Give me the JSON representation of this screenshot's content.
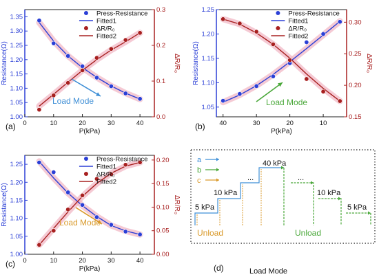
{
  "colors": {
    "blue": "#2b3fd6",
    "red": "#a82020",
    "highlight": "#f2b8c6",
    "arrow_a": "#3f8fd6",
    "arrow_b": "#4aa83a",
    "arrow_c": "#d99a2b",
    "axis": "#222222"
  },
  "chart_data": [
    {
      "type": "scatter",
      "panel_label": "(a)",
      "xlabel": "P(kPa)",
      "ylabel_left": "Resistance(Ω)",
      "ylabel_right": "ΔR/R₀",
      "xlim": [
        0,
        45
      ],
      "xticks": [
        0,
        10,
        20,
        30,
        40
      ],
      "ylim_left": [
        1.0,
        1.375
      ],
      "yticks_left": [
        1.0,
        1.05,
        1.1,
        1.15,
        1.2,
        1.25,
        1.3,
        1.35
      ],
      "ylim_right": [
        0.0,
        0.3
      ],
      "yticks_right": [
        0.0,
        0.1,
        0.2,
        0.3
      ],
      "annotation": "Load Mode",
      "annotation_arrow": "up-right",
      "legend_position": "top-right",
      "legend": [
        {
          "label": "Press-Resistance",
          "kind": "marker",
          "color": "#2b3fd6"
        },
        {
          "label": "Fitted1",
          "kind": "line",
          "color": "#2b3fd6"
        },
        {
          "label": "ΔR/R₀",
          "kind": "marker",
          "color": "#a82020"
        },
        {
          "label": "Fitted2",
          "kind": "line",
          "color": "#a82020"
        }
      ],
      "series": [
        {
          "axis": "left",
          "color": "#2b3fd6",
          "x": [
            5,
            10,
            15,
            20,
            25,
            30,
            35,
            40
          ],
          "y": [
            1.337,
            1.257,
            1.213,
            1.177,
            1.137,
            1.107,
            1.082,
            1.063
          ],
          "fit_y": [
            1.33,
            1.265,
            1.213,
            1.172,
            1.138,
            1.108,
            1.083,
            1.062
          ]
        },
        {
          "axis": "right",
          "color": "#a82020",
          "x": [
            5,
            10,
            15,
            20,
            25,
            30,
            35,
            40
          ],
          "y": [
            0.02,
            0.06,
            0.095,
            0.13,
            0.165,
            0.19,
            0.215,
            0.235
          ],
          "fit_y": [
            0.03,
            0.063,
            0.097,
            0.13,
            0.16,
            0.187,
            0.21,
            0.235
          ]
        }
      ]
    },
    {
      "type": "scatter",
      "panel_label": "(b)",
      "xlabel": "P(kPa)",
      "ylabel_left": "Resistance(Ω)",
      "ylabel_right": "ΔR/R₀",
      "xlim": [
        42,
        3
      ],
      "xticks": [
        40,
        30,
        20,
        10
      ],
      "ylim_left": [
        1.03,
        1.25
      ],
      "yticks_left": [
        1.05,
        1.1,
        1.15,
        1.2,
        1.25
      ],
      "ylim_right": [
        0.15,
        0.32
      ],
      "yticks_right": [
        0.15,
        0.2,
        0.25,
        0.3
      ],
      "annotation": "Load Mode",
      "annotation_arrow": "up-right",
      "legend_position": "top-right",
      "legend": [
        {
          "label": "Press-Resistance",
          "kind": "marker",
          "color": "#2b3fd6"
        },
        {
          "label": "Fitted1",
          "kind": "line",
          "color": "#2b3fd6"
        },
        {
          "label": "ΔR/R₀",
          "kind": "marker",
          "color": "#a82020"
        },
        {
          "label": "Fitted2",
          "kind": "line",
          "color": "#a82020"
        }
      ],
      "series": [
        {
          "axis": "left",
          "color": "#2b3fd6",
          "x": [
            40,
            35,
            30,
            25,
            20,
            15,
            10,
            5
          ],
          "y": [
            1.063,
            1.077,
            1.093,
            1.113,
            1.14,
            1.183,
            1.2,
            1.225
          ],
          "fit_y": [
            1.06,
            1.075,
            1.094,
            1.117,
            1.143,
            1.17,
            1.198,
            1.226
          ]
        },
        {
          "axis": "right",
          "color": "#a82020",
          "x": [
            40,
            35,
            30,
            25,
            20,
            15,
            10,
            5
          ],
          "y": [
            0.305,
            0.298,
            0.285,
            0.265,
            0.24,
            0.21,
            0.19,
            0.175
          ],
          "fit_y": [
            0.305,
            0.297,
            0.283,
            0.265,
            0.243,
            0.218,
            0.195,
            0.175
          ]
        }
      ]
    },
    {
      "type": "scatter",
      "panel_label": "(c)",
      "xlabel": "P(kPa)",
      "ylabel_left": "Resistance(Ω)",
      "ylabel_right": "ΔR/R₀",
      "xlim": [
        0,
        45
      ],
      "xticks": [
        0,
        10,
        20,
        30,
        40
      ],
      "ylim_left": [
        1.0,
        1.275
      ],
      "yticks_left": [
        1.0,
        1.05,
        1.1,
        1.15,
        1.2,
        1.25
      ],
      "ylim_right": [
        0.0,
        0.21
      ],
      "yticks_right": [
        0.0,
        0.05,
        0.1,
        0.15,
        0.2
      ],
      "annotation": "Load Mode",
      "annotation_arrow": "down-right",
      "legend_position": "top-right",
      "legend": [
        {
          "label": "Press-Resistance",
          "kind": "marker",
          "color": "#2b3fd6"
        },
        {
          "label": "Fitted1",
          "kind": "line",
          "color": "#2b3fd6"
        },
        {
          "label": "ΔR/R₀",
          "kind": "marker",
          "color": "#a82020"
        },
        {
          "label": "Fitted2",
          "kind": "line",
          "color": "#a82020"
        }
      ],
      "series": [
        {
          "axis": "left",
          "color": "#2b3fd6",
          "x": [
            5,
            10,
            15,
            20,
            25,
            30,
            35,
            40
          ],
          "y": [
            1.255,
            1.228,
            1.172,
            1.137,
            1.103,
            1.082,
            1.063,
            1.055
          ],
          "fit_y": [
            1.258,
            1.212,
            1.17,
            1.135,
            1.105,
            1.08,
            1.065,
            1.055
          ]
        },
        {
          "axis": "right",
          "color": "#a82020",
          "x": [
            5,
            10,
            15,
            20,
            25,
            30,
            35,
            40
          ],
          "y": [
            0.02,
            0.05,
            0.095,
            0.125,
            0.16,
            0.17,
            0.19,
            0.195
          ],
          "fit_y": [
            0.02,
            0.055,
            0.09,
            0.123,
            0.15,
            0.172,
            0.187,
            0.195
          ]
        }
      ]
    }
  ],
  "diagram": {
    "panel_label": "(d)",
    "legend": [
      {
        "label": "a",
        "color": "#3f8fd6"
      },
      {
        "label": "b",
        "color": "#4aa83a"
      },
      {
        "label": "c",
        "color": "#d99a2b"
      }
    ],
    "step_labels": [
      "5 kPa",
      "10 kPa",
      "...",
      "40 kPa",
      "...",
      "10 kPa",
      "5 kPa"
    ],
    "unload_left": "Unload",
    "unload_right": "Unload"
  },
  "caption": "Load Mode"
}
